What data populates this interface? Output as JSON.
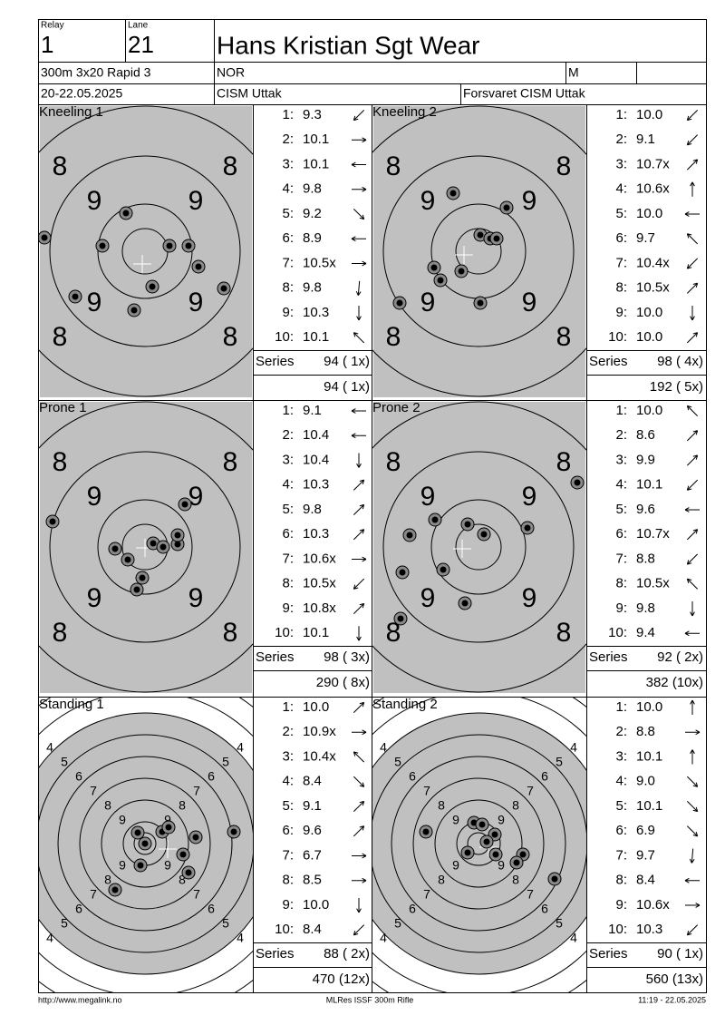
{
  "header": {
    "relay_label": "Relay",
    "relay": "1",
    "lane_label": "Lane",
    "lane": "21",
    "name": "Hans Kristian Sgt Wear",
    "event": "300m 3x20 Rapid 3",
    "nation": "NOR",
    "gender": "M",
    "date": "20-22.05.2025",
    "club": "CISM Uttak",
    "team": "Forsvaret CISM Uttak"
  },
  "shot_numbers": [
    "1:",
    "2:",
    "3:",
    "4:",
    "5:",
    "6:",
    "7:",
    "8:",
    "9:",
    "10:"
  ],
  "series_label": "Series",
  "targets": [
    {
      "labels": [
        "8",
        "9"
      ]
    },
    {
      "labels": [
        "4",
        "5",
        "6",
        "7",
        "8",
        "9"
      ]
    }
  ],
  "series": [
    {
      "title": "Kneeling 1",
      "shots": [
        "9.3",
        "10.1",
        "10.1",
        "9.8",
        "9.2",
        "8.9",
        "10.5x",
        "9.8",
        "10.3",
        "10.1"
      ],
      "series_total": "94 ( 1x)",
      "running_total": "94 ( 1x)"
    },
    {
      "title": "Kneeling 2",
      "shots": [
        "10.0",
        "9.1",
        "10.7x",
        "10.6x",
        "10.0",
        "9.7",
        "10.4x",
        "10.5x",
        "10.0",
        "10.0"
      ],
      "series_total": "98 ( 4x)",
      "running_total": "192 ( 5x)"
    },
    {
      "title": "Prone 1",
      "shots": [
        "9.1",
        "10.4",
        "10.4",
        "10.3",
        "9.8",
        "10.3",
        "10.6x",
        "10.5x",
        "10.8x",
        "10.1"
      ],
      "series_total": "98 ( 3x)",
      "running_total": "290 ( 8x)"
    },
    {
      "title": "Prone 2",
      "shots": [
        "10.0",
        "8.6",
        "9.9",
        "10.1",
        "9.6",
        "10.7x",
        "8.8",
        "10.5x",
        "9.8",
        "9.4"
      ],
      "series_total": "92 ( 2x)",
      "running_total": "382 (10x)"
    },
    {
      "title": "Standing 1",
      "shots": [
        "10.0",
        "10.9x",
        "10.4x",
        "8.4",
        "9.1",
        "9.6",
        "6.7",
        "8.5",
        "10.0",
        "8.4"
      ],
      "series_total": "88 ( 2x)",
      "running_total": "470 (12x)"
    },
    {
      "title": "Standing 2",
      "shots": [
        "10.0",
        "8.8",
        "10.1",
        "9.0",
        "10.1",
        "6.9",
        "9.7",
        "8.4",
        "10.6x",
        "10.3"
      ],
      "series_total": "90 ( 1x)",
      "running_total": "560 (13x)"
    }
  ],
  "footer": {
    "url": "http://www.megalink.no",
    "software": "MLRes ISSF 300m Rifle",
    "timestamp": "11:19 - 22.05.2025"
  }
}
